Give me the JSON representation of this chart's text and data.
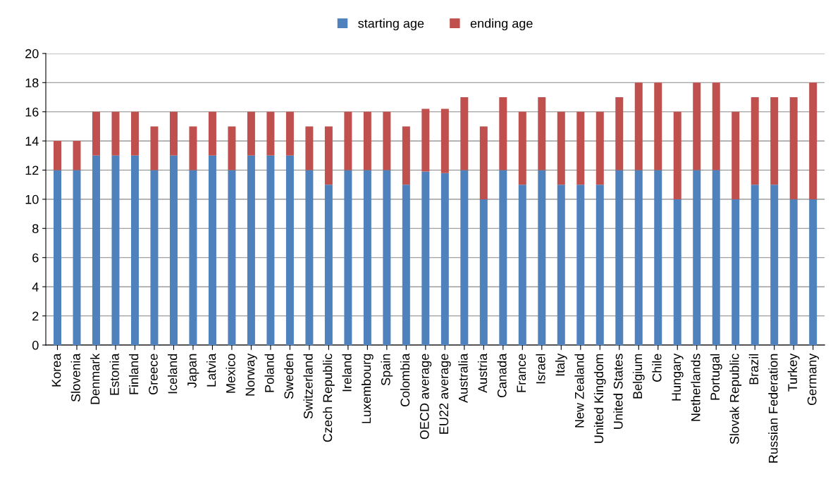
{
  "chart_data": {
    "type": "bar",
    "stacked": true,
    "categories": [
      "Korea",
      "Slovenia",
      "Denmark",
      "Estonia",
      "Finland",
      "Greece",
      "Iceland",
      "Japan",
      "Latvia",
      "Mexico",
      "Norway",
      "Poland",
      "Sweden",
      "Switzerland",
      "Czech Republic",
      "Ireland",
      "Luxembourg",
      "Spain",
      "Colombia",
      "OECD average",
      "EU22 average",
      "Australia",
      "Austria",
      "Canada",
      "France",
      "Israel",
      "Italy",
      "New Zealand",
      "United Kingdom",
      "United States",
      "Belgium",
      "Chile",
      "Hungary",
      "Netherlands",
      "Portugal",
      "Slovak Republic",
      "Brazil",
      "Russian Federation",
      "Turkey",
      "Germany"
    ],
    "series": [
      {
        "name": "starting age",
        "color": "#4f81bd",
        "values": [
          12,
          12,
          13,
          13,
          13,
          12,
          13,
          12,
          13,
          12,
          13,
          13,
          13,
          12,
          11,
          12,
          12,
          12,
          11,
          11.9,
          11.8,
          12,
          10,
          12,
          11,
          12,
          11,
          11,
          11,
          12,
          12,
          12,
          10,
          12,
          12,
          10,
          11,
          11,
          10,
          10
        ]
      },
      {
        "name": "ending age",
        "color": "#c0504d",
        "values": [
          2,
          2,
          3,
          3,
          3,
          3,
          3,
          3,
          3,
          3,
          3,
          3,
          3,
          3,
          4,
          4,
          4,
          4,
          4,
          4.3,
          4.4,
          5,
          5,
          5,
          5,
          5,
          5,
          5,
          5,
          5,
          6,
          6,
          6,
          6,
          6,
          6,
          6,
          6,
          7,
          8
        ]
      }
    ],
    "ylim": [
      0,
      20
    ],
    "yticks": [
      0,
      2,
      4,
      6,
      8,
      10,
      12,
      14,
      16,
      18,
      20
    ],
    "grid": "y",
    "legend": "top"
  }
}
